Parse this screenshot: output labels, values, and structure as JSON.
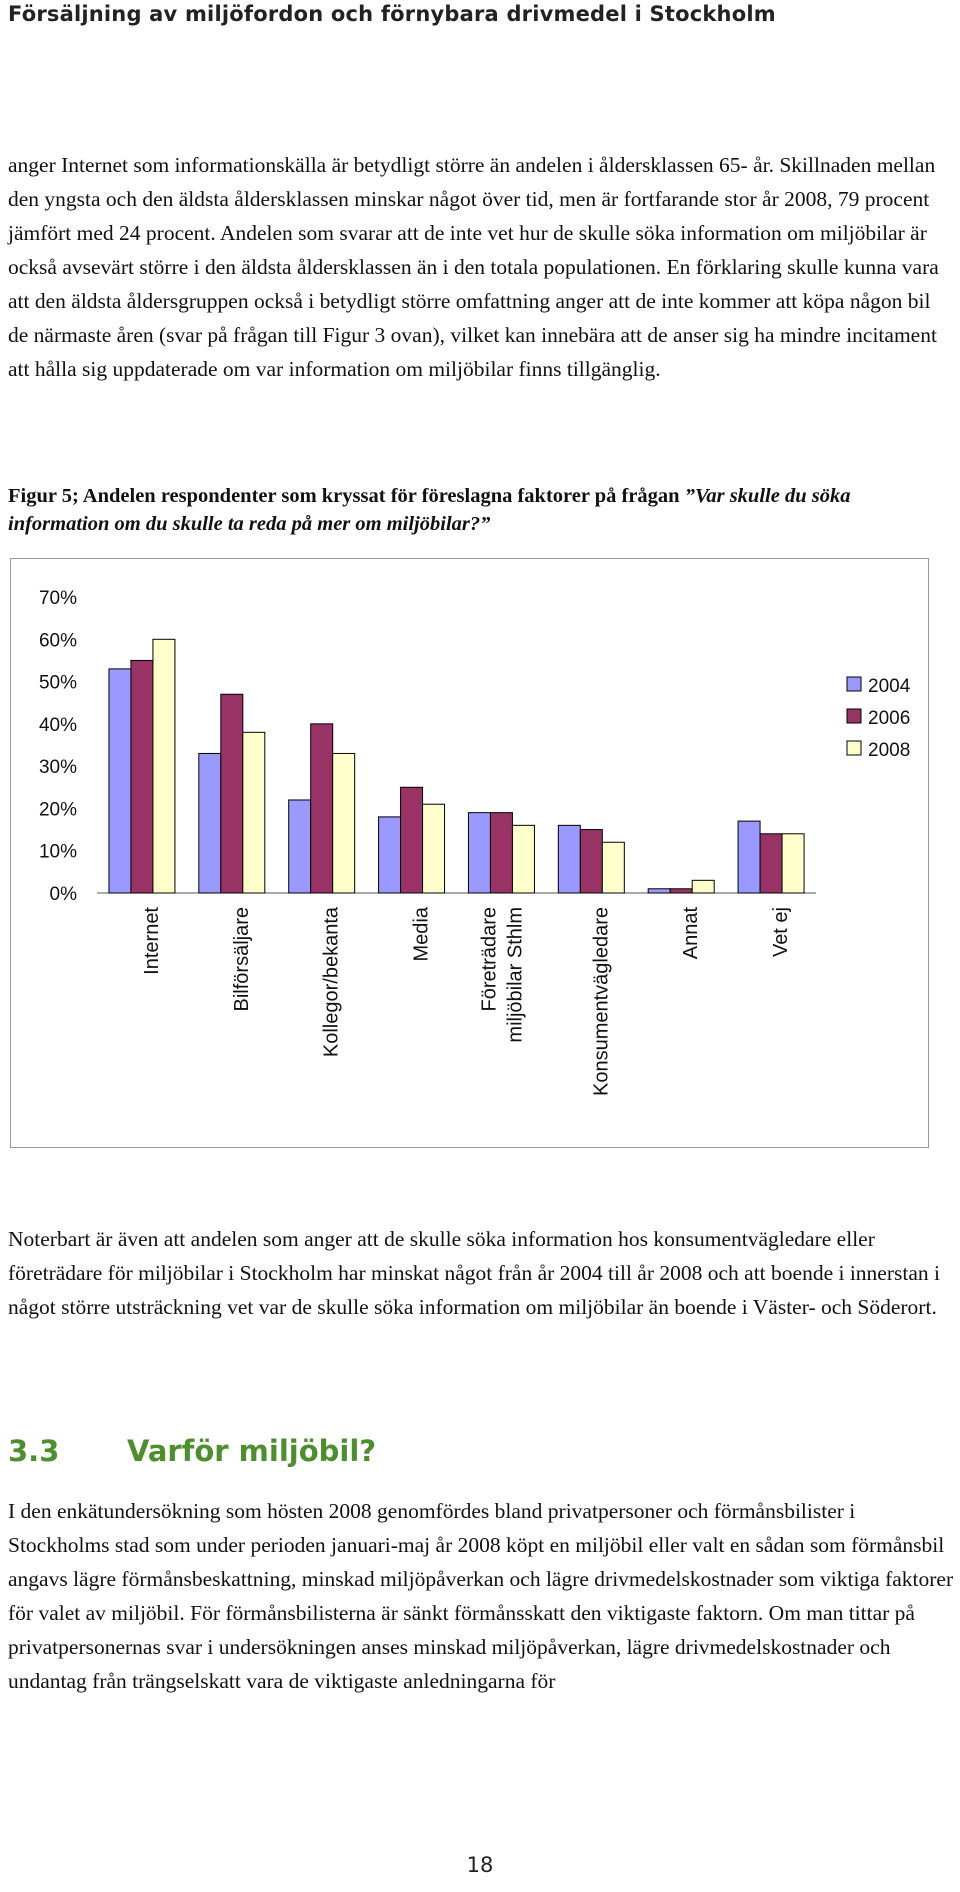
{
  "header": {
    "title": "Försäljning av miljöfordon och förnybara drivmedel i Stockholm"
  },
  "paragraph1": "anger Internet som informationskälla är betydligt större än andelen i åldersklassen 65- år. Skillnaden mellan den yngsta och den äldsta åldersklassen minskar något över tid, men är fortfarande stor år 2008, 79 procent jämfört med 24 procent. Andelen som svarar att de inte vet hur de skulle söka information om miljöbilar är också avsevärt större i den äldsta åldersklassen än i den totala populationen. En förklaring skulle kunna vara att den äldsta åldersgruppen också i betydligt större omfattning anger att de inte kommer att köpa någon bil de närmaste åren (svar på frågan till Figur 3 ovan), vilket kan innebära att de anser sig ha mindre incitament att hålla sig uppdaterade om var information om miljöbilar finns tillgänglig.",
  "figure": {
    "caption_lead": "Figur 5; Andelen respondenter som kryssat för föreslagna faktorer på frågan ",
    "caption_question": "”Var skulle du söka information om du skulle ta reda på mer om miljöbilar?”"
  },
  "chart_data": {
    "type": "bar",
    "categories": [
      "Internet",
      "Bilförsäljare",
      "Kollegor/bekanta",
      "Media",
      "Företrädare miljöbilar Sthlm",
      "Konsumentvägledare",
      "Annat",
      "Vet ej"
    ],
    "category_lines": [
      [
        "Internet"
      ],
      [
        "Bilförsäljare"
      ],
      [
        "Kollegor/bekanta"
      ],
      [
        "Media"
      ],
      [
        "Företrädare",
        "miljöbilar Sthlm"
      ],
      [
        "Konsumentvägledare"
      ],
      [
        "Annat"
      ],
      [
        "Vet ej"
      ]
    ],
    "series": [
      {
        "name": "2004",
        "values": [
          53,
          33,
          22,
          18,
          19,
          16,
          1,
          17
        ],
        "color": "#9999ff"
      },
      {
        "name": "2006",
        "values": [
          55,
          47,
          40,
          25,
          19,
          15,
          1,
          14
        ],
        "color": "#993366"
      },
      {
        "name": "2008",
        "values": [
          60,
          38,
          33,
          21,
          16,
          12,
          3,
          14
        ],
        "color": "#ffffcc"
      }
    ],
    "ylim": [
      0,
      70
    ],
    "yticks": [
      "0%",
      "10%",
      "20%",
      "30%",
      "40%",
      "50%",
      "60%",
      "70%"
    ],
    "grid": false,
    "legend_position": "right"
  },
  "paragraph2": "Noterbart är även att andelen som anger att de skulle söka information hos konsumentvägledare eller företrädare för miljöbilar i Stockholm har minskat något från år 2004 till år 2008 och att boende i innerstan i något större utsträckning vet var de skulle söka information om miljöbilar än boende i Väster- och Söderort.",
  "section": {
    "number": "3.3",
    "title": "Varför miljöbil?"
  },
  "paragraph3": "I den enkätundersökning som hösten 2008 genomfördes bland privatpersoner och förmånsbilister i Stockholms stad som under perioden januari-maj år 2008 köpt en miljöbil eller valt en sådan som förmånsbil angavs lägre förmånsbeskattning, minskad miljöpåverkan och lägre drivmedelskostnader som viktiga faktorer för valet av miljöbil. För förmånsbilisterna är sänkt förmånsskatt den viktigaste faktorn. Om man tittar på privatpersonernas svar i undersökningen anses minskad miljöpåverkan, lägre drivmedelskostnader och undantag från trängselskatt vara de viktigaste anledningarna för",
  "page_number": "18"
}
